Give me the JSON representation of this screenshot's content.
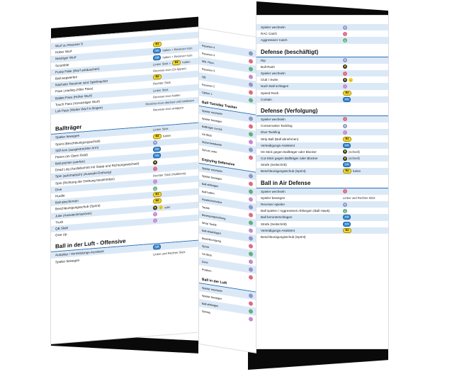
{
  "left": {
    "top_rows": [
      {
        "label": "Wurf zu Receiver 5",
        "ctl": []
      },
      {
        "label": "Hoher Wurf",
        "ctl": [
          {
            "t": "badge",
            "c": "y",
            "v": "R1"
          }
        ],
        "note": ""
      },
      {
        "label": "Niedriger Wurf",
        "ctl": [
          {
            "t": "badge",
            "c": "b",
            "v": "L1"
          }
        ],
        "note": "halten + Receiver-Icon"
      },
      {
        "label": "Scramble",
        "ctl": [
          {
            "t": "badge",
            "c": "b",
            "v": "L2"
          }
        ],
        "note": "halten + Receiver-Icon"
      },
      {
        "label": "Pump Fake (Wurf antäuschen)",
        "ctl": [
          {
            "t": "badge",
            "c": "y",
            "v": "R2"
          }
        ],
        "pre": "Linker Stick +",
        "note": "halten"
      },
      {
        "label": "Ball wegwerfen",
        "ctl": [],
        "pre": "Receiver-Icon (2x tippen)"
      },
      {
        "label": "Nächster Receiver wird Spielmacher",
        "ctl": [
          {
            "t": "badge",
            "c": "y",
            "v": "R2"
          }
        ]
      },
      {
        "label": "Pass Leading (After Pass)",
        "ctl": [],
        "pre": "Rechter Stick"
      },
      {
        "label": "Ballett Pass (Hoher Wurf)",
        "ctl": [],
        "pre": "Linker Stick"
      },
      {
        "label": "Touch Pass (Vorsichtiger Wurf)",
        "ctl": [],
        "pre": "Receiver-Icon halten"
      },
      {
        "label": "Lob Pass (Weiter Wurf in Bogen)",
        "ctl": [],
        "pre": "Receiver-Icon drücken und loslassen"
      },
      {
        "label": "",
        "ctl": [],
        "pre": "Receiver-Icon antippen"
      }
    ],
    "section1": "Ballträger",
    "rows1": [
      {
        "label": "Spieler bewegen",
        "ctl": [],
        "pre": "Linker Stick"
      },
      {
        "label": "Sprint (Beschleunigungsschub)",
        "ctl": [
          {
            "t": "badge",
            "c": "y",
            "v": "R2"
          }
        ],
        "note": "halten"
      },
      {
        "label": "Stiff Arm (ausgestreckter Arm)",
        "ctl": [
          {
            "t": "btn",
            "c": "x",
            "v": "✕"
          }
        ]
      },
      {
        "label": "Feiern (im Open Field)",
        "ctl": [
          {
            "t": "badge",
            "c": "b",
            "v": "L1"
          }
        ]
      },
      {
        "label": "Ball pitchen (werfen)",
        "ctl": [
          {
            "t": "badge",
            "c": "b",
            "v": "L1"
          }
        ]
      },
      {
        "label": "Dead Leg (Ausfallschritt mit Stopp und Richtungswechsel)",
        "ctl": [
          {
            "t": "btn",
            "c": "stick",
            "v": "R"
          }
        ]
      },
      {
        "label": "Spin (automatisch) (Auswahl-Drehung)",
        "ctl": [
          {
            "t": "btn",
            "c": "o",
            "v": "○"
          }
        ]
      },
      {
        "label": "Spin (Richtung der Drehung bestimmbar)",
        "ctl": [],
        "pre": "Rechter Stick (Halbkreis)"
      },
      {
        "label": "Dive",
        "ctl": [
          {
            "t": "btn",
            "c": "s",
            "v": "□"
          }
        ]
      },
      {
        "label": "Hurdle",
        "ctl": [
          {
            "t": "btn",
            "c": "t",
            "v": "△"
          }
        ]
      },
      {
        "label": "Ball abschirmen",
        "ctl": [
          {
            "t": "badge",
            "c": "y",
            "v": "R1"
          }
        ]
      },
      {
        "label": "Beschleunigungsschub (Sprint)",
        "ctl": [
          {
            "t": "badge",
            "c": "y",
            "v": "R2"
          }
        ]
      },
      {
        "label": "Juke (Ausweichmanöver)",
        "ctl": [
          {
            "t": "btn",
            "c": "stick",
            "v": "R"
          },
          {
            "t": "btn",
            "c": "y",
            "v": "↔"
          }
        ],
        "note": "oder"
      },
      {
        "label": "Truck",
        "ctl": [
          {
            "t": "btn",
            "c": "s",
            "v": "□"
          }
        ]
      },
      {
        "label": "QB Slide",
        "ctl": [
          {
            "t": "btn",
            "c": "s",
            "v": "□"
          }
        ]
      },
      {
        "label": "Give Up",
        "ctl": []
      }
    ],
    "section2": "Ball in der Luft - Offensive",
    "rows2": [
      {
        "label": "Autoplay / Vermeidungs-Assistent",
        "ctl": [
          {
            "t": "badge",
            "c": "b",
            "v": "L2"
          }
        ]
      },
      {
        "label": "Spieler bewegen",
        "ctl": [],
        "pre": "Linker und Rechter Stick"
      }
    ]
  },
  "middle": {
    "rows_a": [
      "Receiver 4",
      "Receiver 4",
      "Mid. Recv.",
      "Receiver 3",
      "QB",
      "Receiver 2",
      "Option 1"
    ],
    "sec_a": "Ball Tuesday Tracker",
    "rows_b": [
      "Spieler wechseln",
      "Spieler bewegen",
      "Ballträger zurück",
      "Hit Stick",
      "Sicherheitskante",
      "Schutz unter"
    ],
    "sec_b": "Enjoying Defensive",
    "rows_c": [
      "Spieler wechseln",
      "Spieler bewegen",
      "Ball abfangen",
      "Ball halten",
      "Reaktionsmodus",
      "Tackle",
      "Bewegungsrichtung",
      "Wrap Tackle",
      "Ball abschlagen",
      "Beschleunigung",
      "Sprint",
      "Hit Stick",
      "Zone",
      "Position"
    ],
    "sec_c": "Ball in der Luft",
    "rows_d": [
      "Spieler wechseln",
      "Spieler bewegen",
      "Ball abfangen",
      "Schlag"
    ]
  },
  "right": {
    "top_rows": [
      {
        "label": "Spieler wechseln",
        "ctl": [
          {
            "t": "btn",
            "c": "x",
            "v": "✕"
          }
        ]
      },
      {
        "label": "RAC Catch",
        "ctl": [
          {
            "t": "btn",
            "c": "o",
            "v": "○"
          }
        ]
      },
      {
        "label": "Aggressiver Catch",
        "ctl": [
          {
            "t": "btn",
            "c": "t",
            "v": "△"
          }
        ]
      }
    ],
    "section1": "Defense (beschäftigt)",
    "rows1": [
      {
        "label": "Rip",
        "ctl": [
          {
            "t": "btn",
            "c": "x",
            "v": "✕"
          }
        ]
      },
      {
        "label": "Bull-Rush",
        "ctl": [
          {
            "t": "btn",
            "c": "stick",
            "v": "R"
          }
        ]
      },
      {
        "label": "Spieler wechseln",
        "ctl": [
          {
            "t": "btn",
            "c": "o",
            "v": "○"
          }
        ]
      },
      {
        "label": "Club / Swim",
        "ctl": [
          {
            "t": "btn",
            "c": "stick",
            "v": "R"
          },
          {
            "t": "btn",
            "c": "y",
            "v": "↔"
          }
        ]
      },
      {
        "label": "Nach Ball schlagen",
        "ctl": [
          {
            "t": "btn",
            "c": "s",
            "v": "□"
          }
        ]
      },
      {
        "label": "Speed Rush",
        "ctl": [
          {
            "t": "badge",
            "c": "y",
            "v": "R2"
          }
        ]
      },
      {
        "label": "Contain",
        "ctl": [
          {
            "t": "badge",
            "c": "b",
            "v": "L1"
          }
        ]
      }
    ],
    "section2": "Defense (Verfolgung)",
    "rows2": [
      {
        "label": "Spieler wechseln",
        "ctl": [
          {
            "t": "btn",
            "c": "o",
            "v": "○"
          }
        ]
      },
      {
        "label": "Conservative Tackling",
        "ctl": [
          {
            "t": "btn",
            "c": "x",
            "v": "✕"
          }
        ]
      },
      {
        "label": "Dive-Tackling",
        "ctl": [
          {
            "t": "btn",
            "c": "s",
            "v": "□"
          }
        ]
      },
      {
        "label": "Strip Ball (Ball abnehmen)",
        "ctl": [
          {
            "t": "badge",
            "c": "y",
            "v": "R1"
          }
        ]
      },
      {
        "label": "Verteidigungs-Assistent",
        "ctl": [
          {
            "t": "badge",
            "c": "b",
            "v": "L1"
          }
        ]
      },
      {
        "label": "Hit Stick gegen Ballträger oder Blocker",
        "ctl": [
          {
            "t": "btn",
            "c": "stick",
            "v": "R"
          }
        ],
        "note": "(schnell)"
      },
      {
        "label": "Cut-Stick gegen Ballträger oder Blocker",
        "ctl": [
          {
            "t": "btn",
            "c": "stick",
            "v": "R"
          }
        ],
        "note": "(schnell)"
      },
      {
        "label": "Strafe (Seitschritt)",
        "ctl": [
          {
            "t": "badge",
            "c": "b",
            "v": "L2"
          }
        ]
      },
      {
        "label": "Beschleunigungsschub (Sprint)",
        "ctl": [
          {
            "t": "badge",
            "c": "y",
            "v": "R2"
          }
        ],
        "note": "halten"
      }
    ],
    "section3": "Ball in Air Defense",
    "rows3": [
      {
        "label": "Spieler wechseln",
        "ctl": [
          {
            "t": "btn",
            "c": "o",
            "v": "○"
          }
        ]
      },
      {
        "label": "Spieler bewegen",
        "ctl": [],
        "pre": "Linker und Rechter Stick"
      },
      {
        "label": "Receiver spielen",
        "ctl": [
          {
            "t": "btn",
            "c": "x",
            "v": "✕"
          }
        ]
      },
      {
        "label": "Ball spielen / Aggressives Abfangen (Ball Hawk)",
        "ctl": [
          {
            "t": "btn",
            "c": "t",
            "v": "△"
          }
        ]
      },
      {
        "label": "Ball herunterschlagen",
        "ctl": [
          {
            "t": "badge",
            "c": "b",
            "v": "L2"
          }
        ]
      },
      {
        "label": "Strafe (Seitschritt)",
        "ctl": [
          {
            "t": "badge",
            "c": "b",
            "v": "L1"
          }
        ]
      },
      {
        "label": "Verteidigungs-Assistent",
        "ctl": [
          {
            "t": "badge",
            "c": "y",
            "v": "R2"
          }
        ]
      },
      {
        "label": "Beschleunigungsschub (Sprint)",
        "ctl": []
      }
    ]
  }
}
